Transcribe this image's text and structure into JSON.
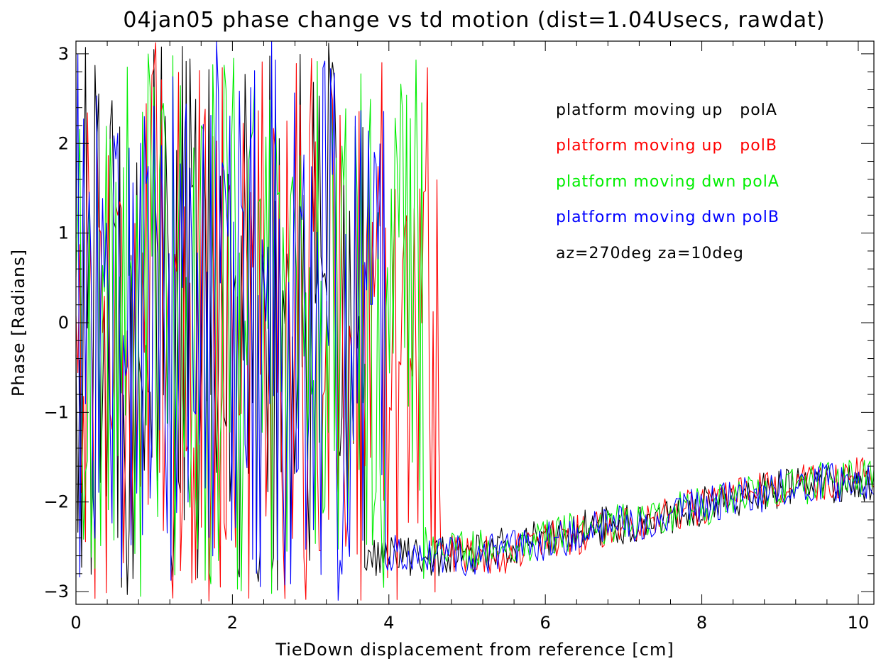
{
  "chart_data": {
    "type": "line",
    "title": "04jan05 phase change vs td motion (dist=1.04Usecs, rawdat)",
    "xlabel": "TieDown displacement from reference [cm]",
    "ylabel": "Phase [Radians]",
    "xlim": [
      0,
      10.2
    ],
    "ylim": [
      -3.14159,
      3.14159
    ],
    "x_ticks": [
      0,
      2,
      4,
      6,
      8,
      10
    ],
    "x_tick_labels": [
      "0",
      "2",
      "4",
      "6",
      "8",
      "10"
    ],
    "y_ticks": [
      -3,
      -2,
      -1,
      0,
      1,
      2,
      3
    ],
    "y_tick_labels": [
      "−3",
      "−2",
      "−1",
      "0",
      "1",
      "2",
      "3"
    ],
    "x_minor_step": 0.4,
    "y_minor_step": 0.2,
    "grid": false,
    "legend_position": "top-right",
    "legend": [
      {
        "label": "platform moving up   polA",
        "color": "#000000"
      },
      {
        "label": "platform moving up   polB",
        "color": "#ff0000"
      },
      {
        "label": "platform moving dwn polA",
        "color": "#00ee00"
      },
      {
        "label": "platform moving dwn polB",
        "color": "#0000ff"
      }
    ],
    "annotation": "az=270deg za=10deg",
    "series": [
      {
        "color": "#000000",
        "wrap_end_x": 3.75,
        "x": [
          0,
          1,
          2,
          3,
          3.75,
          4,
          4.5,
          5,
          5.5,
          6,
          6.5,
          7,
          7.5,
          8,
          8.5,
          9,
          9.5,
          10,
          10.2
        ],
        "y": [
          0.1,
          -1.2,
          -2.0,
          -2.8,
          -2.62,
          -2.6,
          -2.6,
          -2.62,
          -2.5,
          -2.4,
          -2.3,
          -2.25,
          -2.15,
          -2.05,
          -1.95,
          -1.85,
          -1.8,
          -1.8,
          -1.8
        ]
      },
      {
        "color": "#ff0000",
        "wrap_end_x": 4.7,
        "x": [
          0,
          1,
          2,
          3,
          4,
          4.7,
          5,
          5.5,
          6,
          6.5,
          7,
          7.5,
          8,
          8.5,
          9,
          9.5,
          10,
          10.2
        ],
        "y": [
          0.5,
          -1.0,
          -2.0,
          -2.7,
          -2.6,
          -2.55,
          -2.6,
          -2.58,
          -2.45,
          -2.35,
          -2.25,
          -2.15,
          -2.05,
          -1.95,
          -1.85,
          -1.78,
          -1.72,
          -1.7
        ]
      },
      {
        "color": "#00ee00",
        "wrap_end_x": 4.5,
        "x": [
          0,
          1,
          2,
          3,
          4,
          4.5,
          5,
          5.5,
          6,
          6.5,
          7,
          7.5,
          8,
          8.5,
          9,
          9.5,
          10,
          10.2
        ],
        "y": [
          -0.5,
          -1.3,
          -2.2,
          -2.8,
          -2.6,
          -2.5,
          -2.55,
          -2.5,
          -2.4,
          -2.3,
          -2.22,
          -2.12,
          -2.05,
          -1.95,
          -1.85,
          -1.78,
          -1.72,
          -1.7
        ]
      },
      {
        "color": "#0000ff",
        "wrap_end_x": 4.0,
        "x": [
          0,
          1,
          2,
          3,
          4,
          4.5,
          5,
          5.5,
          6,
          6.5,
          7,
          7.5,
          8,
          8.5,
          9,
          9.5,
          10,
          10.2
        ],
        "y": [
          0.1,
          -1.1,
          -2.1,
          -2.75,
          -2.6,
          -2.55,
          -2.6,
          -2.55,
          -2.45,
          -2.35,
          -2.25,
          -2.15,
          -2.05,
          -1.95,
          -1.85,
          -1.8,
          -1.75,
          -1.72
        ]
      }
    ]
  }
}
